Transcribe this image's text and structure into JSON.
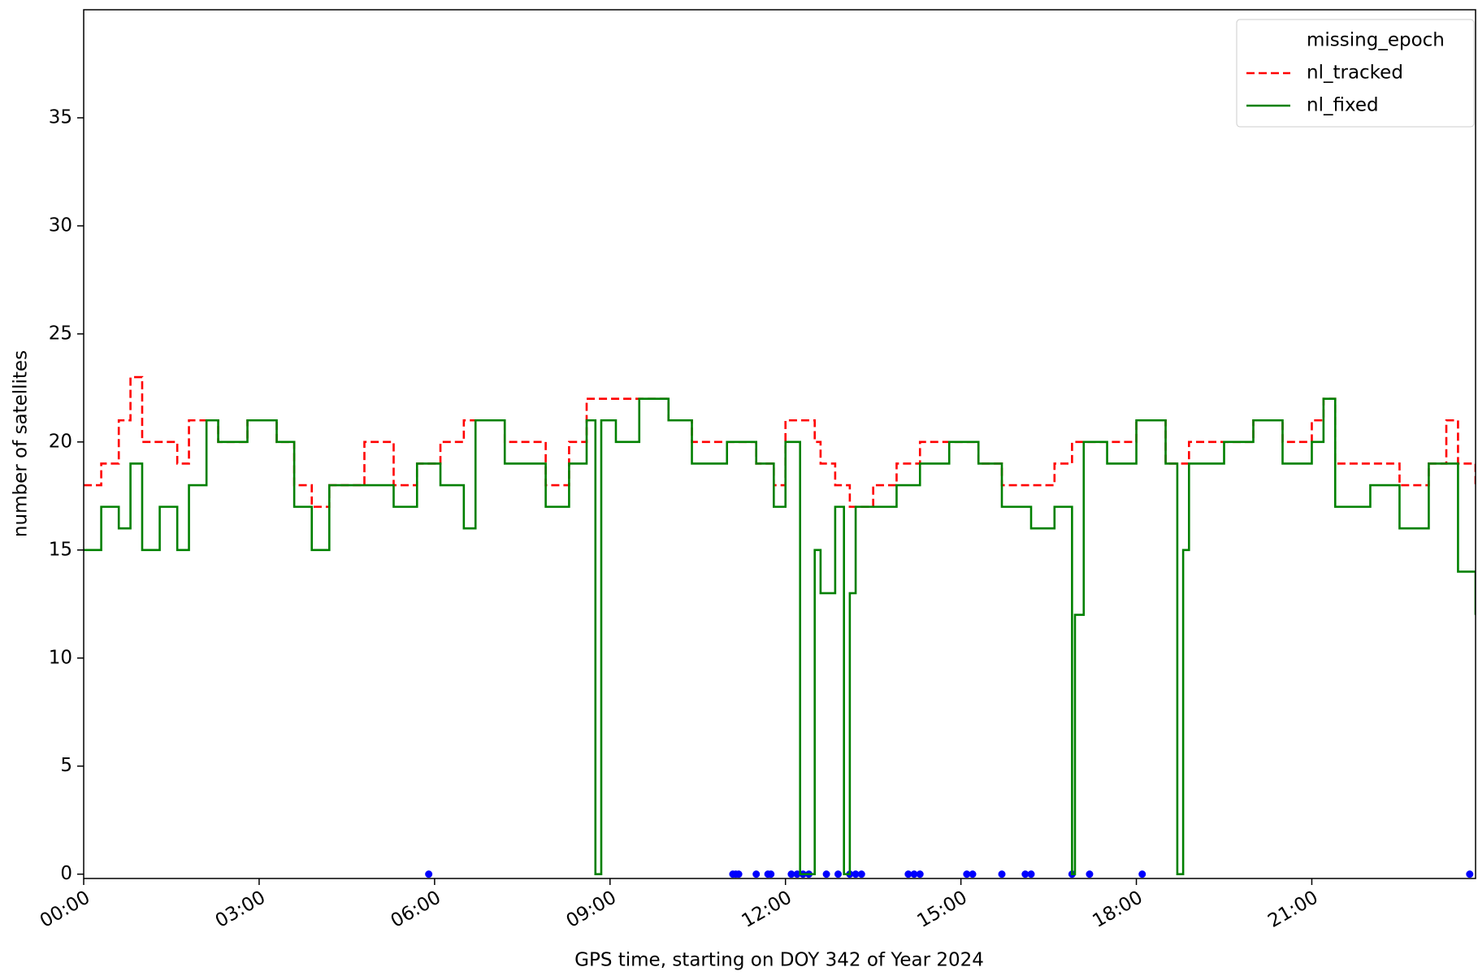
{
  "chart_data": {
    "type": "line",
    "drawstyle": "steps-post",
    "xlabel": "GPS time, starting on DOY 342 of Year 2024",
    "ylabel": "number of satellites",
    "xlim": [
      0,
      23.8
    ],
    "ylim": [
      -0.2,
      40
    ],
    "xticks": [
      {
        "value": 0,
        "label": "00:00"
      },
      {
        "value": 3,
        "label": "03:00"
      },
      {
        "value": 6,
        "label": "06:00"
      },
      {
        "value": 9,
        "label": "09:00"
      },
      {
        "value": 12,
        "label": "12:00"
      },
      {
        "value": 15,
        "label": "15:00"
      },
      {
        "value": 18,
        "label": "18:00"
      },
      {
        "value": 21,
        "label": "21:00"
      }
    ],
    "yticks": [
      0,
      5,
      10,
      15,
      20,
      25,
      30,
      35
    ],
    "legend": "upper right",
    "x": [
      0,
      0.3,
      0.6,
      0.8,
      1.0,
      1.3,
      1.6,
      1.8,
      2.1,
      2.3,
      2.8,
      3.3,
      3.6,
      3.9,
      4.2,
      4.8,
      5.3,
      5.7,
      6.1,
      6.5,
      6.7,
      7.2,
      7.9,
      8.3,
      8.6,
      8.75,
      8.85,
      9.1,
      9.5,
      10.0,
      10.4,
      11.0,
      11.5,
      11.8,
      12.0,
      12.25,
      12.5,
      12.6,
      12.85,
      13.0,
      13.1,
      13.2,
      13.5,
      13.9,
      14.3,
      14.8,
      15.3,
      15.7,
      16.2,
      16.6,
      16.9,
      16.95,
      17.1,
      17.5,
      18.0,
      18.5,
      18.7,
      18.8,
      18.9,
      19.5,
      20.0,
      20.5,
      21.0,
      21.2,
      21.4,
      22.0,
      22.5,
      23.0,
      23.3,
      23.5,
      23.8
    ],
    "missing_x": [
      5.9,
      11.1,
      11.15,
      11.2,
      11.5,
      11.7,
      11.75,
      12.1,
      12.2,
      12.3,
      12.4,
      12.7,
      12.9,
      13.1,
      13.2,
      13.3,
      14.1,
      14.2,
      14.3,
      15.1,
      15.2,
      15.7,
      16.1,
      16.2,
      16.9,
      17.2,
      18.1,
      23.7
    ],
    "series": [
      {
        "name": "missing_epoch",
        "kind": "scatter",
        "color": "#0000ff",
        "values": [
          0,
          0,
          0,
          0,
          0,
          0,
          0,
          0,
          0,
          0,
          0,
          0,
          0,
          0,
          0,
          0,
          0,
          0,
          0,
          0,
          0,
          0,
          0,
          0,
          0,
          0,
          0,
          0
        ]
      },
      {
        "name": "nl_tracked",
        "kind": "line",
        "linestyle": "dashed",
        "color": "#ff0000",
        "values": [
          18,
          19,
          21,
          23,
          20,
          20,
          19,
          21,
          21,
          20,
          21,
          20,
          18,
          17,
          18,
          20,
          18,
          19,
          20,
          21,
          21,
          20,
          18,
          20,
          22,
          22,
          22,
          22,
          22,
          21,
          20,
          20,
          19,
          18,
          21,
          21,
          20,
          19,
          18,
          18,
          17,
          17,
          18,
          19,
          20,
          20,
          19,
          18,
          18,
          19,
          20,
          20,
          20,
          20,
          21,
          19,
          19,
          19,
          20,
          20,
          21,
          20,
          21,
          22,
          19,
          19,
          18,
          19,
          21,
          19,
          18
        ]
      },
      {
        "name": "nl_fixed",
        "kind": "line",
        "linestyle": "solid",
        "color": "#008000",
        "values": [
          15,
          17,
          16,
          19,
          15,
          17,
          15,
          18,
          21,
          20,
          21,
          20,
          17,
          15,
          18,
          18,
          17,
          19,
          18,
          16,
          21,
          19,
          17,
          19,
          21,
          0,
          21,
          20,
          22,
          21,
          19,
          20,
          19,
          17,
          20,
          0,
          15,
          13,
          17,
          0,
          13,
          17,
          17,
          18,
          19,
          20,
          19,
          17,
          16,
          17,
          0,
          12,
          20,
          19,
          21,
          19,
          0,
          15,
          19,
          20,
          21,
          19,
          20,
          22,
          17,
          18,
          16,
          19,
          19,
          14,
          12
        ]
      }
    ]
  }
}
